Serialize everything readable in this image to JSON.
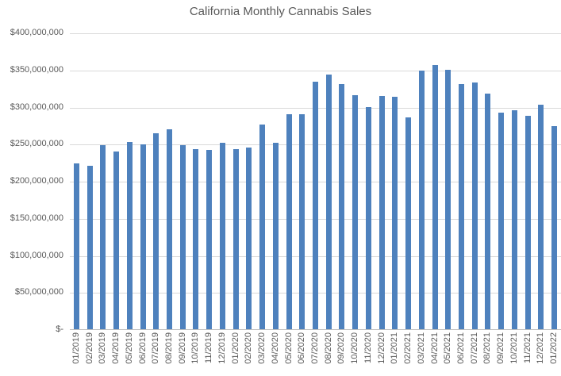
{
  "title": "California Monthly Cannabis Sales",
  "colors": {
    "bar": "#4E81BD",
    "gridline": "#D9D9D9",
    "axis_line": "#BFBFBF",
    "text": "#595959",
    "background": "#FFFFFF"
  },
  "chart_data": {
    "type": "bar",
    "title": "California Monthly Cannabis Sales",
    "xlabel": "",
    "ylabel": "",
    "ylim": [
      0,
      400000000
    ],
    "ytick_interval": 50000000,
    "ytick_labels": [
      "$-",
      "$50,000,000",
      "$100,000,000",
      "$150,000,000",
      "$200,000,000",
      "$250,000,000",
      "$300,000,000",
      "$350,000,000",
      "$400,000,000"
    ],
    "grid": true,
    "legend": false,
    "x_labels_rotated_up": true,
    "categories": [
      "01/2019",
      "02/2019",
      "03/2019",
      "04/2019",
      "05/2019",
      "06/2019",
      "07/2019",
      "08/2019",
      "09/2019",
      "10/2019",
      "11/2019",
      "12/2019",
      "01/2020",
      "02/2020",
      "03/2020",
      "04/2020",
      "05/2020",
      "06/2020",
      "07/2020",
      "08/2020",
      "09/2020",
      "10/2020",
      "11/2020",
      "12/2020",
      "01/2021",
      "02/2021",
      "03/2021",
      "04/2021",
      "05/2021",
      "06/2021",
      "07/2021",
      "08/2021",
      "09/2021",
      "10/2021",
      "11/2021",
      "12/2021",
      "01/2022"
    ],
    "values": [
      224000000,
      220000000,
      248000000,
      240000000,
      252000000,
      249000000,
      264000000,
      270000000,
      248000000,
      243000000,
      242000000,
      251000000,
      243000000,
      245000000,
      276000000,
      251000000,
      290000000,
      290000000,
      334000000,
      343000000,
      330000000,
      316000000,
      300000000,
      314000000,
      313000000,
      286000000,
      349000000,
      356000000,
      350000000,
      331000000,
      333000000,
      318000000,
      292000000,
      295000000,
      288000000,
      303000000,
      274000000
    ]
  }
}
